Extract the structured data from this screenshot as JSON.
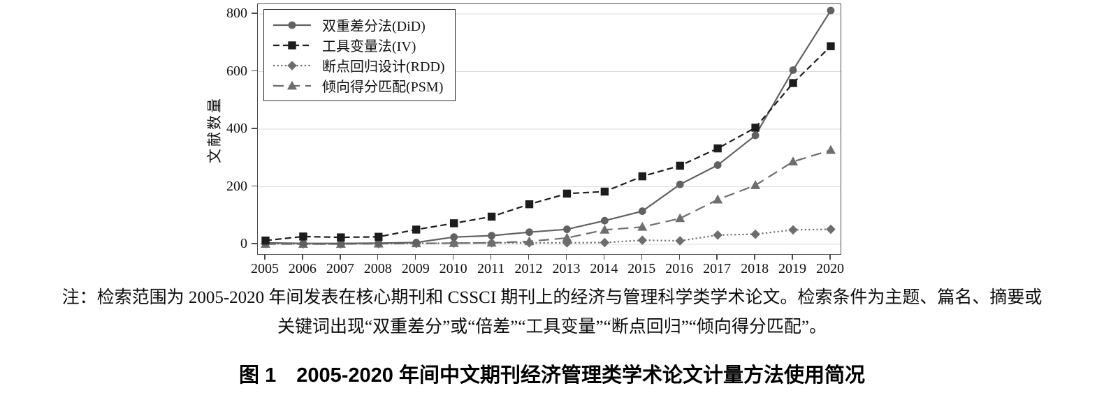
{
  "figure": {
    "note_line1": "注：检索范围为 2005-2020 年间发表在核心期刊和 CSSCI 期刊上的经济与管理科学类学术论文。检索条件为主题、篇名、摘要或",
    "note_line2": "关键词出现“双重差分”或“倍差”“工具变量”“断点回归”“倾向得分匹配”。",
    "caption": "图 1　2005-2020 年间中文期刊经济管理类学术论文计量方法使用简况"
  },
  "chart_data": {
    "type": "line",
    "title": "",
    "xlabel": "",
    "ylabel": "文献数量",
    "ylim": [
      0,
      830
    ],
    "yticks": [
      0,
      200,
      400,
      600,
      800
    ],
    "grid": "horizontal",
    "legend_position": "top-left-inside",
    "x": [
      2005,
      2006,
      2007,
      2008,
      2009,
      2010,
      2011,
      2012,
      2013,
      2014,
      2015,
      2016,
      2017,
      2018,
      2019,
      2020
    ],
    "series": [
      {
        "key": "did",
        "name": "双重差分法(DiD)",
        "marker": "circle",
        "dash": "solid",
        "color": "#616161",
        "values": [
          5,
          3,
          3,
          4,
          6,
          25,
          30,
          42,
          52,
          82,
          115,
          208,
          275,
          378,
          605,
          812
        ]
      },
      {
        "key": "iv",
        "name": "工具变量法(IV)",
        "marker": "square",
        "dash": "dashed",
        "color": "#1c1c1c",
        "values": [
          13,
          27,
          24,
          26,
          51,
          73,
          96,
          139,
          176,
          183,
          236,
          273,
          333,
          405,
          560,
          688
        ]
      },
      {
        "key": "rdd",
        "name": "断点回归设计(RDD)",
        "marker": "diamond",
        "dash": "dotted",
        "color": "#6e6e6e",
        "values": [
          2,
          1,
          1,
          2,
          3,
          4,
          5,
          5,
          5,
          6,
          14,
          12,
          32,
          35,
          50,
          52
        ]
      },
      {
        "key": "psm",
        "name": "倾向得分匹配(PSM)",
        "marker": "triangle",
        "dash": "longdash",
        "color": "#6e6e6e",
        "values": [
          1,
          1,
          1,
          2,
          3,
          4,
          5,
          10,
          22,
          50,
          60,
          90,
          155,
          205,
          287,
          327
        ]
      }
    ]
  }
}
